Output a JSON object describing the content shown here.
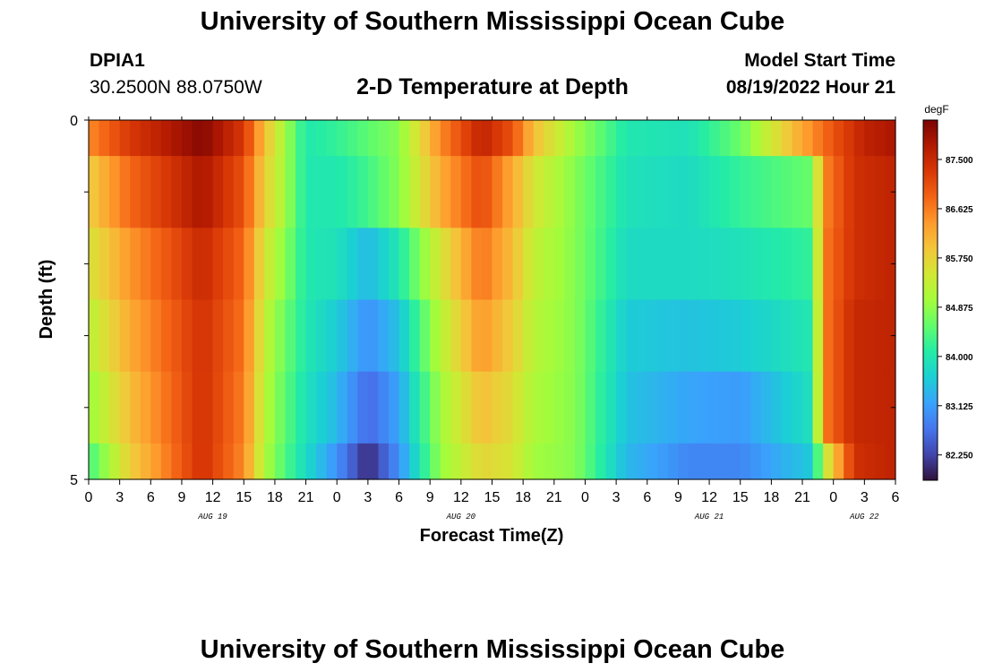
{
  "header": {
    "title": "University of Southern Mississippi Ocean Cube",
    "station_id": "DPIA1",
    "coordinates": "30.2500N  88.0750W",
    "plot_title": "2-D Temperature at Depth",
    "model_start_label": "Model Start Time",
    "model_start_value": "08/19/2022 Hour 21"
  },
  "footer": {
    "title": "University of Southern Mississippi Ocean Cube"
  },
  "colors": {
    "colormap": [
      "#30123b",
      "#4145ab",
      "#4675ed",
      "#39a2fc",
      "#1bcfd4",
      "#24eca6",
      "#61fc6c",
      "#a4fc3b",
      "#d1e834",
      "#f3c63a",
      "#fe9b2d",
      "#f36315",
      "#d93806",
      "#b11901",
      "#7a0403"
    ]
  },
  "chart_data": {
    "type": "heatmap",
    "title": "2-D Temperature at Depth",
    "xlabel": "Forecast Time(Z)",
    "ylabel": "Depth (ft)",
    "y_tick_labels": [
      "0",
      "5"
    ],
    "ylim": [
      0,
      5
    ],
    "depth_levels": [
      0,
      1,
      2,
      3,
      4,
      5
    ],
    "x_tick_labels": [
      "0",
      "3",
      "6",
      "9",
      "12",
      "15",
      "18",
      "21",
      "0",
      "3",
      "6",
      "9",
      "12",
      "15",
      "18",
      "21",
      "0",
      "3",
      "6",
      "9",
      "12",
      "15",
      "18",
      "21",
      "0",
      "3",
      "6"
    ],
    "x_hours_range": [
      0,
      78
    ],
    "day_labels": [
      {
        "label": "AUG 19",
        "hour": 12
      },
      {
        "label": "AUG 20",
        "hour": 36
      },
      {
        "label": "AUG 21",
        "hour": 60
      },
      {
        "label": "AUG 22",
        "hour": 75
      }
    ],
    "colorbar": {
      "unit": "degF",
      "min": 81.8,
      "max": 88.2,
      "tick_values": [
        87.5,
        86.625,
        85.75,
        84.875,
        84.0,
        83.125,
        82.25
      ],
      "tick_labels": [
        "87.500",
        "86.625",
        "85.750",
        "84.875",
        "84.000",
        "83.125",
        "82.250"
      ]
    },
    "row_keyframes": [
      [
        [
          0,
          86.5
        ],
        [
          4,
          87.3
        ],
        [
          11,
          88.1
        ],
        [
          15,
          87.3
        ],
        [
          17,
          86.0
        ],
        [
          19,
          85.0
        ],
        [
          21,
          84.0
        ],
        [
          24,
          84.2
        ],
        [
          30,
          84.8
        ],
        [
          34,
          86.5
        ],
        [
          38,
          87.6
        ],
        [
          41,
          87.0
        ],
        [
          43,
          86.0
        ],
        [
          47,
          85.0
        ],
        [
          52,
          84.0
        ],
        [
          58,
          83.9
        ],
        [
          63,
          84.6
        ],
        [
          68,
          86.0
        ],
        [
          72,
          87.0
        ],
        [
          75,
          87.6
        ],
        [
          78,
          87.8
        ]
      ],
      [
        [
          0,
          85.8
        ],
        [
          4,
          86.8
        ],
        [
          11,
          87.8
        ],
        [
          15,
          87.0
        ],
        [
          17,
          85.8
        ],
        [
          19,
          85.0
        ],
        [
          21,
          84.0
        ],
        [
          24,
          84.0
        ],
        [
          27,
          84.3
        ],
        [
          30,
          84.8
        ],
        [
          34,
          86.2
        ],
        [
          38,
          87.1
        ],
        [
          41,
          86.2
        ],
        [
          43,
          85.5
        ],
        [
          47,
          84.8
        ],
        [
          52,
          83.9
        ],
        [
          58,
          83.8
        ],
        [
          63,
          84.2
        ],
        [
          70,
          84.6
        ],
        [
          71,
          86.5
        ],
        [
          74,
          87.4
        ],
        [
          78,
          87.6
        ]
      ],
      [
        [
          0,
          85.5
        ],
        [
          4,
          86.4
        ],
        [
          11,
          87.5
        ],
        [
          15,
          86.8
        ],
        [
          17,
          85.5
        ],
        [
          19,
          84.8
        ],
        [
          21,
          84.0
        ],
        [
          24,
          83.9
        ],
        [
          27,
          83.4
        ],
        [
          30,
          84.0
        ],
        [
          34,
          85.5
        ],
        [
          38,
          86.7
        ],
        [
          41,
          86.0
        ],
        [
          43,
          85.3
        ],
        [
          47,
          84.8
        ],
        [
          52,
          83.8
        ],
        [
          58,
          83.8
        ],
        [
          63,
          83.9
        ],
        [
          70,
          84.2
        ],
        [
          71,
          86.6
        ],
        [
          74,
          87.4
        ],
        [
          78,
          87.6
        ]
      ],
      [
        [
          0,
          85.2
        ],
        [
          4,
          86.2
        ],
        [
          11,
          87.4
        ],
        [
          15,
          86.7
        ],
        [
          17,
          85.3
        ],
        [
          19,
          84.6
        ],
        [
          21,
          84.0
        ],
        [
          24,
          83.6
        ],
        [
          27,
          83.0
        ],
        [
          30,
          83.5
        ],
        [
          34,
          85.2
        ],
        [
          38,
          86.4
        ],
        [
          41,
          85.8
        ],
        [
          43,
          85.2
        ],
        [
          47,
          84.8
        ],
        [
          52,
          83.6
        ],
        [
          58,
          83.5
        ],
        [
          63,
          83.6
        ],
        [
          70,
          84.0
        ],
        [
          71,
          86.6
        ],
        [
          74,
          87.5
        ],
        [
          78,
          87.6
        ]
      ],
      [
        [
          0,
          84.9
        ],
        [
          4,
          86.0
        ],
        [
          11,
          87.4
        ],
        [
          15,
          86.6
        ],
        [
          17,
          85.2
        ],
        [
          19,
          84.5
        ],
        [
          21,
          83.9
        ],
        [
          24,
          83.4
        ],
        [
          27,
          82.6
        ],
        [
          30,
          83.2
        ],
        [
          34,
          85.0
        ],
        [
          38,
          86.0
        ],
        [
          41,
          85.6
        ],
        [
          43,
          85.1
        ],
        [
          47,
          84.8
        ],
        [
          52,
          83.5
        ],
        [
          58,
          83.2
        ],
        [
          63,
          83.1
        ],
        [
          70,
          83.9
        ],
        [
          71,
          86.6
        ],
        [
          74,
          87.5
        ],
        [
          78,
          87.6
        ]
      ],
      [
        [
          0,
          84.3
        ],
        [
          4,
          85.8
        ],
        [
          11,
          87.4
        ],
        [
          15,
          86.5
        ],
        [
          17,
          85.1
        ],
        [
          19,
          84.4
        ],
        [
          21,
          83.8
        ],
        [
          24,
          83.0
        ],
        [
          27,
          82.0
        ],
        [
          30,
          83.0
        ],
        [
          34,
          84.9
        ],
        [
          38,
          85.7
        ],
        [
          41,
          85.5
        ],
        [
          43,
          85.0
        ],
        [
          47,
          84.8
        ],
        [
          52,
          83.4
        ],
        [
          58,
          82.9
        ],
        [
          63,
          82.9
        ],
        [
          70,
          83.6
        ],
        [
          71,
          85.2
        ],
        [
          74,
          87.4
        ],
        [
          78,
          87.6
        ]
      ]
    ]
  }
}
